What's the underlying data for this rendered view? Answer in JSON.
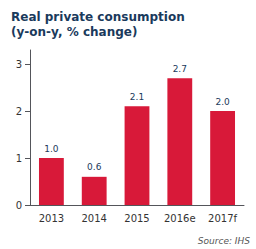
{
  "chart_data": {
    "type": "bar",
    "title": "Real private consumption\n(y-on-y, % change)",
    "categories": [
      "2013",
      "2014",
      "2015",
      "2016e",
      "2017f"
    ],
    "values": [
      1.0,
      0.6,
      2.1,
      2.7,
      2.0
    ],
    "value_labels": [
      "1.0",
      "0.6",
      "2.1",
      "2.7",
      "2.0"
    ],
    "data_labels": true,
    "color": "#d81939",
    "ylim": [
      0,
      3.3
    ],
    "yticks": [
      0,
      1,
      2,
      3
    ],
    "grid": false,
    "annotation": "Source: IHS"
  }
}
